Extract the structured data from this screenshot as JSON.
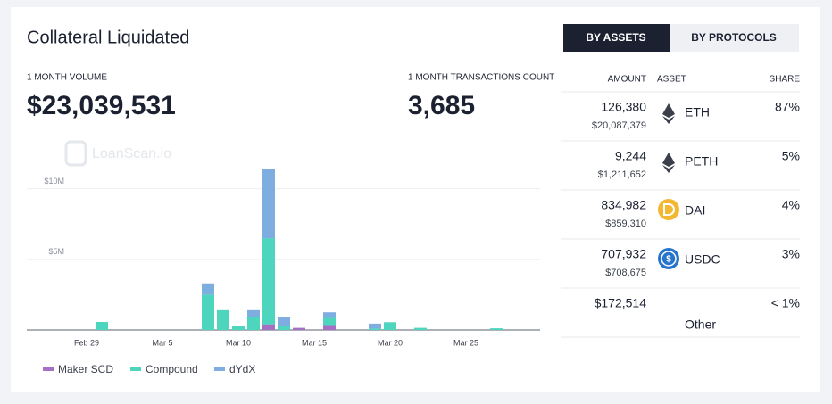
{
  "header": {
    "title": "Collateral Liquidated",
    "volume_label": "1 MONTH VOLUME",
    "volume": "$23,039,531",
    "count_label": "1 MONTH TRANSACTIONS COUNT",
    "count": "3,685"
  },
  "tabs": [
    "BY ASSETS",
    "BY PROTOCOLS"
  ],
  "watermark": "LoanScan.io",
  "table": {
    "columns": [
      "AMOUNT",
      "ASSET",
      "SHARE"
    ],
    "rows": [
      {
        "amount": "126,380",
        "usd": "$20,087,379",
        "asset": "ETH",
        "share": "87%"
      },
      {
        "amount": "9,244",
        "usd": "$1,211,652",
        "asset": "PETH",
        "share": "5%"
      },
      {
        "amount": "834,982",
        "usd": "$859,310",
        "asset": "DAI",
        "share": "4%"
      },
      {
        "amount": "707,932",
        "usd": "$708,675",
        "asset": "USDC",
        "share": "3%"
      },
      {
        "amount": "$172,514",
        "asset": "Other",
        "share": "< 1%"
      }
    ]
  },
  "chart_data": {
    "type": "stacked-bar",
    "categories": [
      null,
      null,
      null,
      null,
      "Feb 29",
      null,
      null,
      null,
      null,
      "Mar 5",
      null,
      null,
      null,
      null,
      "Mar 10",
      null,
      null,
      null,
      null,
      "Mar 15",
      null,
      null,
      null,
      null,
      "Mar 20",
      null,
      null,
      null,
      null,
      "Mar 25",
      null,
      null,
      null,
      null
    ],
    "series": [
      {
        "name": "Maker SCD",
        "color": "#a56fc4",
        "values": [
          0,
          0,
          0,
          0,
          0,
          0,
          0,
          0,
          0,
          0,
          0,
          0,
          0,
          0,
          0,
          0,
          400000,
          0,
          150000,
          0,
          350000,
          0,
          0,
          0,
          0,
          0,
          0,
          0,
          0,
          0,
          0,
          0,
          0,
          0
        ]
      },
      {
        "name": "Compound",
        "color": "#4dd5bd",
        "values": [
          0,
          0,
          0,
          0,
          0,
          570000,
          0,
          0,
          0,
          0,
          0,
          0,
          2500000,
          1400000,
          300000,
          900000,
          6100000,
          300000,
          0,
          0,
          500000,
          0,
          0,
          100000,
          550000,
          0,
          150000,
          0,
          0,
          0,
          0,
          120000,
          0,
          0
        ]
      },
      {
        "name": "dYdX",
        "color": "#7eaee0",
        "values": [
          0,
          0,
          0,
          0,
          0,
          0,
          0,
          0,
          0,
          0,
          0,
          0,
          800000,
          0,
          0,
          500000,
          4900000,
          600000,
          0,
          0,
          400000,
          0,
          0,
          350000,
          0,
          0,
          0,
          0,
          0,
          0,
          0,
          0,
          0,
          0
        ]
      }
    ],
    "ylim": [
      0,
      12000000
    ],
    "yticks": [
      {
        "value": 5000000,
        "label": "$5M"
      },
      {
        "value": 10000000,
        "label": "$10M"
      }
    ],
    "grid": true
  }
}
